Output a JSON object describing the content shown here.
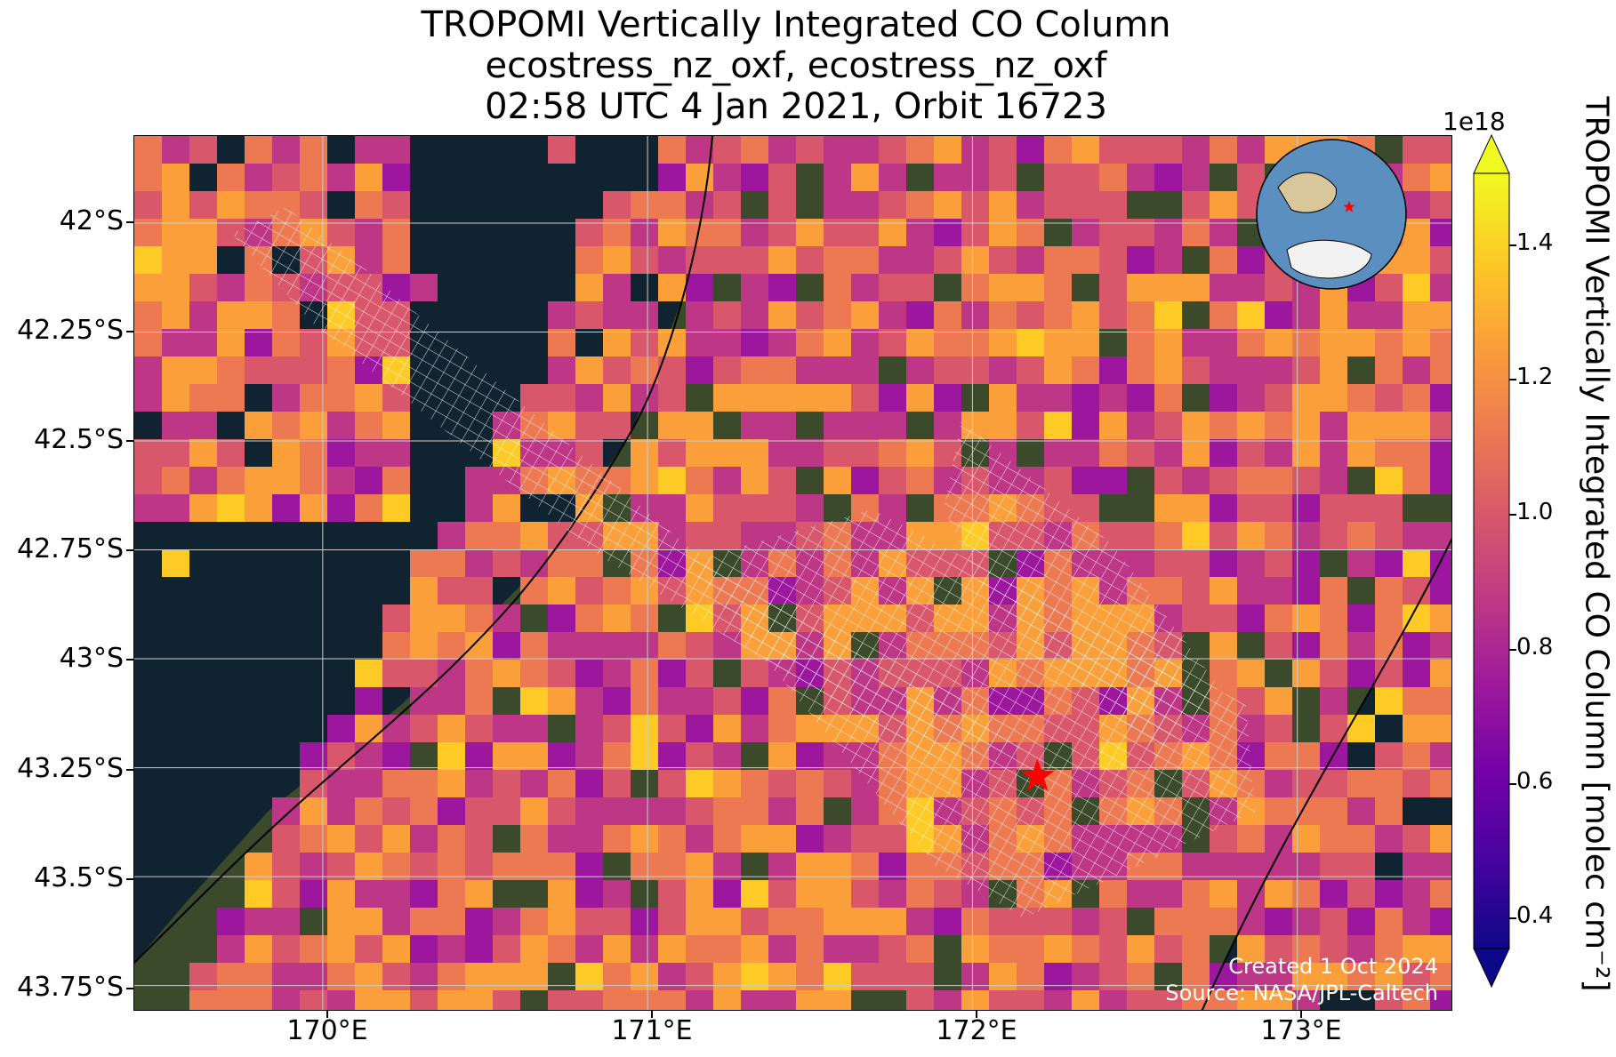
{
  "title": {
    "line1": "TROPOMI Vertically Integrated CO Column",
    "line2": "ecostress_nz_oxf, ecostress_nz_oxf",
    "line3": "02:58 UTC 4 Jan 2021, Orbit 16723"
  },
  "axes": {
    "lon_min": 169.42,
    "lon_max": 173.48,
    "lat_max": -41.8,
    "lat_min": -43.81,
    "x_ticks": [
      {
        "value": 170,
        "label": "170°E"
      },
      {
        "value": 171,
        "label": "171°E"
      },
      {
        "value": 172,
        "label": "172°E"
      },
      {
        "value": 173,
        "label": "173°E"
      }
    ],
    "y_ticks": [
      {
        "value": -42.0,
        "label": "42°S"
      },
      {
        "value": -42.25,
        "label": "42.25°S"
      },
      {
        "value": -42.5,
        "label": "42.5°S"
      },
      {
        "value": -42.75,
        "label": "42.75°S"
      },
      {
        "value": -43.0,
        "label": "43°S"
      },
      {
        "value": -43.25,
        "label": "43.25°S"
      },
      {
        "value": -43.5,
        "label": "43.5°S"
      },
      {
        "value": -43.75,
        "label": "43.75°S"
      }
    ],
    "gridlines": true
  },
  "target": {
    "lon": 172.2,
    "lat": -43.27,
    "marker": "red-star"
  },
  "colorbar": {
    "label": "TROPOMI Vertically Integrated CO Column [molec cm⁻²]",
    "exponent": "1e18",
    "vmin": 0.3,
    "vmax": 1.55,
    "colormap": "plasma",
    "extend": "both",
    "ticks": [
      {
        "value": 0.4,
        "label": "0.4"
      },
      {
        "value": 0.6,
        "label": "0.6"
      },
      {
        "value": 0.8,
        "label": "0.8"
      },
      {
        "value": 1.0,
        "label": "1.0"
      },
      {
        "value": 1.2,
        "label": "1.2"
      },
      {
        "value": 1.4,
        "label": "1.4"
      }
    ]
  },
  "inset_globe": {
    "content": "orthographic globe with Australia and Antarctica",
    "marker": "red-star"
  },
  "credit": {
    "line1": "Created 1 Oct 2024",
    "line2": "Source: NASA/JPL-Caltech"
  },
  "colors": {
    "ocean": "#102331",
    "land": "#3b4a2a",
    "coastline": "#000000",
    "gridline": "#cccccc",
    "footprint_outline": "#ffffff",
    "marker": "#ff0000"
  }
}
